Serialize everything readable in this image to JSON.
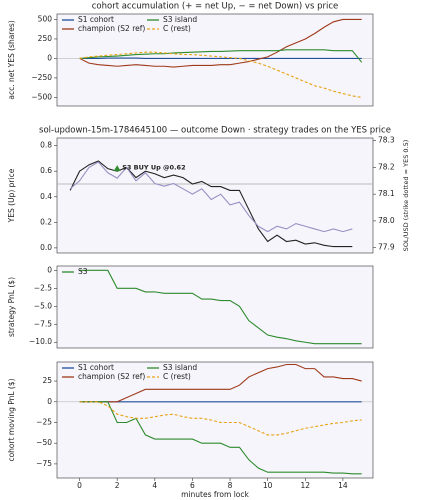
{
  "chart_data": [
    {
      "type": "line",
      "title": "cohort accumulation (+ = net Up, − = net Down) vs price",
      "ylabel": "acc. net YES (shares)",
      "x": [
        0,
        0.5,
        1,
        1.5,
        2,
        2.5,
        3,
        3.5,
        4,
        4.5,
        5,
        5.5,
        6,
        6.5,
        7,
        7.5,
        8,
        8.5,
        9,
        9.5,
        10,
        10.5,
        11,
        11.5,
        12,
        12.5,
        13,
        13.5,
        14,
        14.5,
        15
      ],
      "xlim": [
        -1.2,
        15.6
      ],
      "ylim": [
        -610,
        570
      ],
      "yticks": [
        {
          "value": -500,
          "label": "−500"
        },
        {
          "value": -250,
          "label": "−250"
        },
        0,
        250,
        500
      ],
      "legend": "upper left",
      "zero_line": 0,
      "series": [
        {
          "name": "S1 cohort",
          "color": "#1f4e9c",
          "style": "solid",
          "values": [
            0,
            0,
            0,
            5,
            5,
            5,
            5,
            0,
            0,
            0,
            0,
            0,
            0,
            0,
            0,
            0,
            0,
            0,
            0,
            0,
            0,
            0,
            0,
            0,
            0,
            0,
            0,
            0,
            0,
            0,
            0
          ]
        },
        {
          "name": "champion (S2 ref)",
          "color": "#a0391a",
          "style": "solid",
          "values": [
            0,
            -60,
            -80,
            -90,
            -100,
            -90,
            -80,
            -90,
            -100,
            -100,
            -110,
            -100,
            -90,
            -90,
            -90,
            -80,
            -80,
            -60,
            -40,
            -10,
            20,
            80,
            150,
            200,
            250,
            320,
            400,
            470,
            500,
            500,
            500
          ]
        },
        {
          "name": "S3 island",
          "color": "#2e8b2e",
          "style": "solid",
          "values": [
            0,
            10,
            20,
            25,
            30,
            40,
            50,
            55,
            60,
            60,
            70,
            75,
            80,
            85,
            90,
            90,
            95,
            100,
            100,
            100,
            100,
            100,
            110,
            110,
            110,
            110,
            110,
            100,
            100,
            100,
            -50
          ]
        },
        {
          "name": "C (rest)",
          "color": "#e8a317",
          "style": "dashed",
          "values": [
            0,
            20,
            30,
            40,
            50,
            60,
            70,
            80,
            80,
            70,
            60,
            50,
            50,
            40,
            30,
            20,
            10,
            0,
            -30,
            -60,
            -100,
            -150,
            -200,
            -250,
            -300,
            -350,
            -380,
            -420,
            -450,
            -480,
            -500
          ]
        }
      ]
    },
    {
      "type": "line",
      "title": "sol-updown-15m-1784645100 — outcome Down · strategy trades on the YES price",
      "ylabel": "YES (Up) price",
      "y2label": "SOL/USD (strike dotted = YES 0.5)",
      "x": [
        -0.5,
        0,
        0.5,
        1,
        1.5,
        2,
        2.5,
        3,
        3.5,
        4,
        4.5,
        5,
        5.5,
        6,
        6.5,
        7,
        7.5,
        8,
        8.5,
        9,
        9.5,
        10,
        10.5,
        11,
        11.5,
        12,
        12.5,
        13,
        13.5,
        14,
        14.5
      ],
      "xlim": [
        -1.2,
        15.6
      ],
      "ylim": [
        -0.04,
        0.86
      ],
      "yticks": [
        {
          "value": 0,
          "label": "0.0"
        },
        0.2,
        0.4,
        0.6,
        0.8
      ],
      "y2lim": [
        77.88,
        78.31
      ],
      "y2ticks": [
        77.9,
        {
          "value": 78,
          "label": "78.0"
        },
        78.1,
        78.2,
        78.3
      ],
      "hline": 0.5,
      "series": [
        {
          "color": "#222222",
          "style": "solid",
          "values": [
            0.45,
            0.6,
            0.65,
            0.68,
            0.62,
            0.6,
            0.63,
            0.55,
            0.6,
            0.58,
            0.55,
            0.57,
            0.55,
            0.5,
            0.52,
            0.48,
            0.48,
            0.45,
            0.45,
            0.3,
            0.15,
            0.05,
            0.1,
            0.05,
            0.06,
            0.03,
            0.04,
            0.02,
            0.01,
            0.01,
            0.01
          ]
        },
        {
          "color": "#9b8fc4",
          "style": "solid",
          "axis": "y2",
          "values": [
            78.12,
            78.15,
            78.2,
            78.22,
            78.18,
            78.16,
            78.2,
            78.15,
            78.18,
            78.14,
            78.13,
            78.14,
            78.12,
            78.1,
            78.12,
            78.08,
            78.1,
            78.06,
            78.07,
            78.02,
            77.98,
            77.96,
            77.98,
            77.97,
            77.99,
            77.98,
            77.97,
            77.96,
            77.97,
            77.96,
            77.97
          ]
        }
      ],
      "annotation": {
        "text": "S3 BUY Up @0.62",
        "x": 2,
        "y": 0.62,
        "color": "#2e8b2e"
      }
    },
    {
      "type": "line",
      "ylabel": "strategy PnL ($)",
      "x": [
        0,
        0.5,
        1,
        1.5,
        2,
        2.5,
        3,
        3.5,
        4,
        4.5,
        5,
        5.5,
        6,
        6.5,
        7,
        7.5,
        8,
        8.5,
        9,
        9.5,
        10,
        10.5,
        11,
        11.5,
        12,
        12.5,
        13,
        13.5,
        14,
        14.5,
        15
      ],
      "xlim": [
        -1.2,
        15.6
      ],
      "ylim": [
        -10.8,
        0.6
      ],
      "yticks": [
        0,
        {
          "value": -2.5,
          "label": "−2.5"
        },
        {
          "value": -5,
          "label": "−5.0"
        },
        {
          "value": -7.5,
          "label": "−7.5"
        },
        {
          "value": -10,
          "label": "−10.0"
        }
      ],
      "legend": "upper left",
      "series": [
        {
          "name": "S3",
          "color": "#2e8b2e",
          "style": "solid",
          "values": [
            0,
            0,
            0,
            0,
            -2.5,
            -2.5,
            -2.5,
            -3,
            -3,
            -3.2,
            -3.2,
            -3.2,
            -3.2,
            -4,
            -4,
            -4.2,
            -4.2,
            -5,
            -7,
            -8,
            -9,
            -9.3,
            -9.5,
            -9.8,
            -10,
            -10.2,
            -10.2,
            -10.2,
            -10.2,
            -10.2,
            -10.2
          ]
        }
      ]
    },
    {
      "type": "line",
      "ylabel": "cohort moving PnL ($)",
      "xlabel": "minutes from lock",
      "x": [
        0,
        0.5,
        1,
        1.5,
        2,
        2.5,
        3,
        3.5,
        4,
        4.5,
        5,
        5.5,
        6,
        6.5,
        7,
        7.5,
        8,
        8.5,
        9,
        9.5,
        10,
        10.5,
        11,
        11.5,
        12,
        12.5,
        13,
        13.5,
        14,
        14.5,
        15
      ],
      "xlim": [
        -1.2,
        15.6
      ],
      "xticks": [
        0,
        2,
        4,
        6,
        8,
        10,
        12,
        14
      ],
      "ylim": [
        -92,
        48
      ],
      "yticks": [
        25,
        0,
        {
          "value": -25,
          "label": "−25"
        },
        {
          "value": -50,
          "label": "−50"
        },
        {
          "value": -75,
          "label": "−75"
        }
      ],
      "legend": "upper left",
      "zero_line": 0,
      "series": [
        {
          "name": "S1 cohort",
          "color": "#1f4e9c",
          "style": "solid",
          "values": [
            0,
            0,
            0,
            0,
            0,
            0,
            0,
            0,
            0,
            0,
            0,
            0,
            0,
            0,
            0,
            0,
            0,
            0,
            0,
            0,
            0,
            0,
            0,
            0,
            0,
            0,
            0,
            0,
            0,
            0,
            0
          ]
        },
        {
          "name": "champion (S2 ref)",
          "color": "#a0391a",
          "style": "solid",
          "values": [
            0,
            0,
            0,
            0,
            0,
            5,
            10,
            15,
            15,
            15,
            15,
            15,
            15,
            15,
            15,
            15,
            15,
            20,
            30,
            35,
            40,
            42,
            45,
            45,
            40,
            40,
            30,
            30,
            28,
            28,
            25
          ]
        },
        {
          "name": "S3 island",
          "color": "#2e8b2e",
          "style": "solid",
          "values": [
            0,
            0,
            0,
            0,
            -25,
            -25,
            -20,
            -40,
            -45,
            -45,
            -45,
            -45,
            -45,
            -50,
            -50,
            -50,
            -55,
            -55,
            -70,
            -80,
            -85,
            -85,
            -85,
            -85,
            -85,
            -85,
            -85,
            -86,
            -86,
            -87,
            -87
          ]
        },
        {
          "name": "C (rest)",
          "color": "#e8a317",
          "style": "dashed",
          "values": [
            0,
            0,
            0,
            -5,
            -15,
            -18,
            -20,
            -20,
            -18,
            -16,
            -15,
            -18,
            -20,
            -20,
            -22,
            -25,
            -25,
            -25,
            -30,
            -35,
            -40,
            -40,
            -38,
            -35,
            -32,
            -30,
            -28,
            -26,
            -25,
            -23,
            -22
          ]
        }
      ]
    }
  ]
}
